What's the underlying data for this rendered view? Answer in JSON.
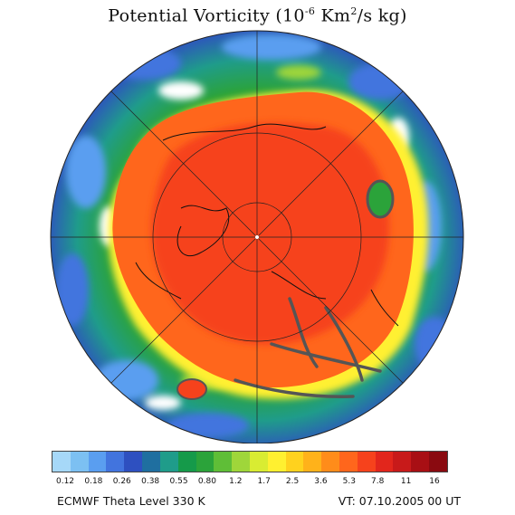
{
  "title": {
    "main": "Potential Vorticity (10",
    "exp1": "-6",
    "mid": " Km",
    "exp2": "2",
    "tail": "/s kg)"
  },
  "colorbar": {
    "colors": [
      "#a6d8f8",
      "#7cc0f2",
      "#5a9ef0",
      "#4274de",
      "#2e50c0",
      "#1f6fa0",
      "#1f9c8a",
      "#159a4a",
      "#2ba33a",
      "#5fbe37",
      "#9fd63a",
      "#d9ec32",
      "#fff030",
      "#ffd21e",
      "#ffb21a",
      "#ff8c1a",
      "#ff661c",
      "#f6421c",
      "#e2261c",
      "#c81a1a",
      "#a80f14",
      "#8a0a10"
    ],
    "labels": [
      "0.12",
      "0.18",
      "0.26",
      "0.38",
      "0.55",
      "0.80",
      "1.2",
      "1.7",
      "2.5",
      "3.6",
      "5.3",
      "7.8",
      "11",
      "16"
    ]
  },
  "footer": {
    "left": "ECMWF Theta Level 330 K",
    "right": "VT: 07.10.2005 00 UT"
  }
}
